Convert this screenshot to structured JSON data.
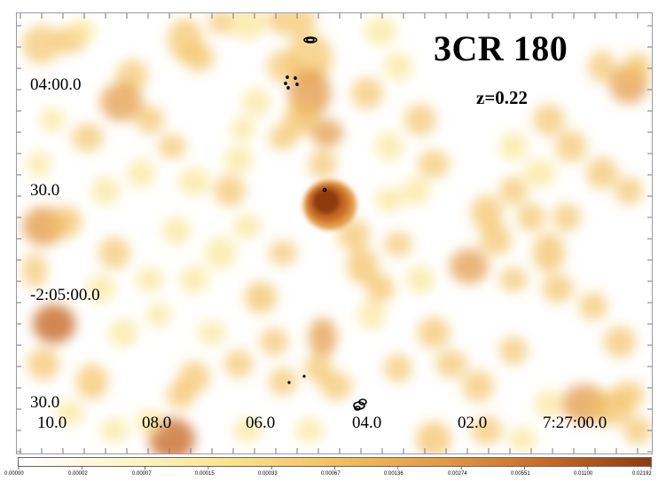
{
  "image": {
    "title": "3CR 180",
    "subtitle": "z=0.22",
    "dec_tick_labels": [
      "04:00.0",
      "30.0",
      "-2:05:00.0",
      "30.0"
    ],
    "ra_tick_labels": [
      "10.0",
      "08.0",
      "06.0",
      "04.0",
      "02.0",
      "7:27:00.0"
    ],
    "colorbar_labels": [
      "0.00000",
      "0.00002",
      "0.00007",
      "0.00015",
      "0.00033",
      "0.00067",
      "0.00136",
      "0.00274",
      "0.00551",
      "0.01100",
      "0.02192"
    ],
    "colormap_colors": [
      "#ffffff",
      "#fdf6cc",
      "#fbe38a",
      "#f3c060",
      "#e39a45",
      "#c86a26",
      "#8e3a10"
    ]
  }
}
